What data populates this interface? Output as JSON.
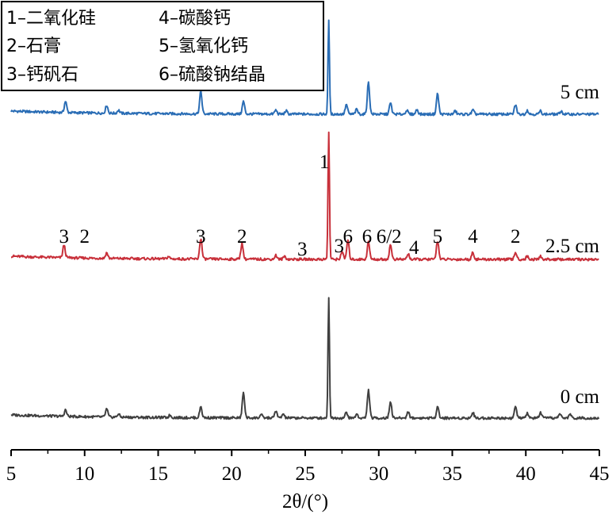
{
  "chart_data": {
    "type": "line",
    "xlabel": "2θ/(°)",
    "xlim": [
      5,
      45
    ],
    "x_ticks": [
      "5",
      "10",
      "15",
      "20",
      "25",
      "30",
      "35",
      "40",
      "45"
    ],
    "grid": false,
    "legend": {
      "placement": "top-left",
      "entries": [
        "1–二氧化硅",
        "2–石膏",
        "3–钙矾石",
        "4–碳酸钙",
        "5–氢氧化钙",
        "6–硫酸钠结晶"
      ]
    },
    "series": [
      {
        "name": "5 cm",
        "color": "#2a6db5",
        "peaks": [
          {
            "x": 8.7,
            "h": 14
          },
          {
            "x": 11.5,
            "h": 10
          },
          {
            "x": 12.3,
            "h": 4
          },
          {
            "x": 17.9,
            "h": 28
          },
          {
            "x": 20.8,
            "h": 16
          },
          {
            "x": 23.0,
            "h": 5
          },
          {
            "x": 23.7,
            "h": 4
          },
          {
            "x": 26.6,
            "h": 118
          },
          {
            "x": 27.8,
            "h": 12
          },
          {
            "x": 28.5,
            "h": 6
          },
          {
            "x": 29.3,
            "h": 40
          },
          {
            "x": 30.8,
            "h": 14
          },
          {
            "x": 31.9,
            "h": 5
          },
          {
            "x": 32.6,
            "h": 6
          },
          {
            "x": 34.0,
            "h": 26
          },
          {
            "x": 35.2,
            "h": 4
          },
          {
            "x": 36.4,
            "h": 5
          },
          {
            "x": 39.3,
            "h": 12
          },
          {
            "x": 40.1,
            "h": 5
          },
          {
            "x": 41.0,
            "h": 4
          },
          {
            "x": 42.4,
            "h": 4
          }
        ]
      },
      {
        "name": "2.5 cm",
        "color": "#c8303a",
        "peaks": [
          {
            "x": 8.6,
            "h": 16
          },
          {
            "x": 11.5,
            "h": 7
          },
          {
            "x": 15.7,
            "h": 3
          },
          {
            "x": 17.9,
            "h": 26
          },
          {
            "x": 20.7,
            "h": 20
          },
          {
            "x": 23.0,
            "h": 5
          },
          {
            "x": 23.6,
            "h": 4
          },
          {
            "x": 26.6,
            "h": 160
          },
          {
            "x": 27.5,
            "h": 10
          },
          {
            "x": 27.9,
            "h": 24
          },
          {
            "x": 29.3,
            "h": 22
          },
          {
            "x": 30.8,
            "h": 18
          },
          {
            "x": 32.0,
            "h": 7
          },
          {
            "x": 34.0,
            "h": 24
          },
          {
            "x": 36.4,
            "h": 9
          },
          {
            "x": 39.3,
            "h": 9
          },
          {
            "x": 40.1,
            "h": 4
          },
          {
            "x": 41.0,
            "h": 4
          }
        ]
      },
      {
        "name": "0 cm",
        "color": "#404040",
        "peaks": [
          {
            "x": 8.7,
            "h": 8
          },
          {
            "x": 11.5,
            "h": 10
          },
          {
            "x": 12.3,
            "h": 4
          },
          {
            "x": 15.8,
            "h": 3
          },
          {
            "x": 17.9,
            "h": 14
          },
          {
            "x": 20.8,
            "h": 32
          },
          {
            "x": 22.0,
            "h": 4
          },
          {
            "x": 23.0,
            "h": 9
          },
          {
            "x": 23.5,
            "h": 5
          },
          {
            "x": 26.6,
            "h": 152
          },
          {
            "x": 27.8,
            "h": 7
          },
          {
            "x": 28.5,
            "h": 5
          },
          {
            "x": 29.3,
            "h": 35
          },
          {
            "x": 30.8,
            "h": 21
          },
          {
            "x": 32.0,
            "h": 8
          },
          {
            "x": 34.0,
            "h": 15
          },
          {
            "x": 36.4,
            "h": 7
          },
          {
            "x": 39.3,
            "h": 14
          },
          {
            "x": 40.1,
            "h": 6
          },
          {
            "x": 41.0,
            "h": 7
          },
          {
            "x": 42.3,
            "h": 6
          },
          {
            "x": 43.0,
            "h": 5
          }
        ]
      }
    ],
    "peak_labels": [
      {
        "text": "1",
        "x": 26.3,
        "series": "2.5 cm"
      },
      {
        "text": "3",
        "x": 8.6,
        "series": "2.5 cm"
      },
      {
        "text": "2",
        "x": 10.0,
        "series": "2.5 cm"
      },
      {
        "text": "3",
        "x": 17.9,
        "series": "2.5 cm"
      },
      {
        "text": "2",
        "x": 20.7,
        "series": "2.5 cm"
      },
      {
        "text": "3",
        "x": 24.8,
        "series": "2.5 cm"
      },
      {
        "text": "3",
        "x": 27.3,
        "series": "2.5 cm"
      },
      {
        "text": "6",
        "x": 27.9,
        "series": "2.5 cm"
      },
      {
        "text": "6",
        "x": 29.2,
        "series": "2.5 cm"
      },
      {
        "text": "6/2",
        "x": 30.7,
        "series": "2.5 cm"
      },
      {
        "text": "4",
        "x": 32.4,
        "series": "2.5 cm"
      },
      {
        "text": "5",
        "x": 34.0,
        "series": "2.5 cm"
      },
      {
        "text": "4",
        "x": 36.4,
        "series": "2.5 cm"
      },
      {
        "text": "2",
        "x": 39.3,
        "series": "2.5 cm"
      }
    ]
  }
}
